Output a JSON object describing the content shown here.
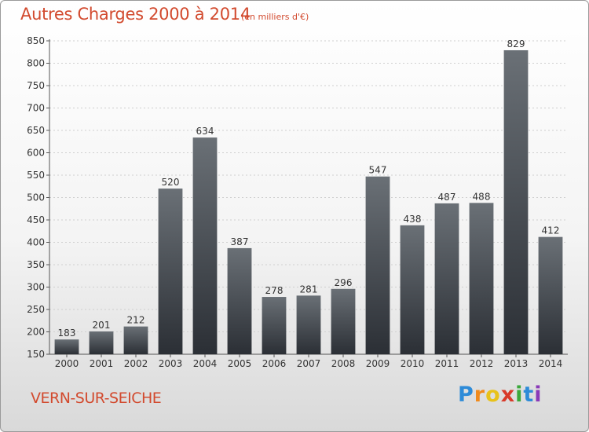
{
  "header": {
    "title": "Autres Charges 2000 à 2014",
    "subtitle": "(en milliers d'€)"
  },
  "footer": {
    "commune": "VERN-SUR-SEICHE",
    "logo_letters": [
      "P",
      "r",
      "o",
      "x",
      "i",
      "t",
      "i"
    ],
    "logo_colors": [
      "#2e8bd8",
      "#f08a1c",
      "#e8c21a",
      "#d83a2a",
      "#3aa83a",
      "#2e8bd8",
      "#8a3ab8"
    ]
  },
  "colors": {
    "title": "#d24a2e",
    "bar_top": "#6a7076",
    "bar_bottom": "#2b2f35",
    "grid": "#cfcfcf",
    "axis_text": "#333333"
  },
  "chart_data": {
    "type": "bar",
    "categories": [
      "2000",
      "2001",
      "2002",
      "2003",
      "2004",
      "2005",
      "2006",
      "2007",
      "2008",
      "2009",
      "2010",
      "2011",
      "2012",
      "2013",
      "2014"
    ],
    "values": [
      183,
      201,
      212,
      520,
      634,
      387,
      278,
      281,
      296,
      547,
      438,
      487,
      488,
      829,
      412
    ],
    "data_labels": [
      "183",
      "201",
      "212",
      "520",
      "634",
      "387",
      "278",
      "281",
      "296",
      "547",
      "438",
      "487",
      "488",
      "829",
      "412"
    ],
    "yticks": [
      150,
      200,
      250,
      300,
      350,
      400,
      450,
      500,
      550,
      600,
      650,
      700,
      750,
      800,
      850
    ],
    "ytick_labels": [
      "150",
      "200",
      "250",
      "300",
      "350",
      "400",
      "450",
      "500",
      "550",
      "600",
      "650",
      "700",
      "750",
      "800",
      "850"
    ],
    "ylim": [
      150,
      850
    ],
    "grid": true,
    "title": "Autres Charges 2000 à 2014",
    "xlabel": "",
    "ylabel": ""
  }
}
